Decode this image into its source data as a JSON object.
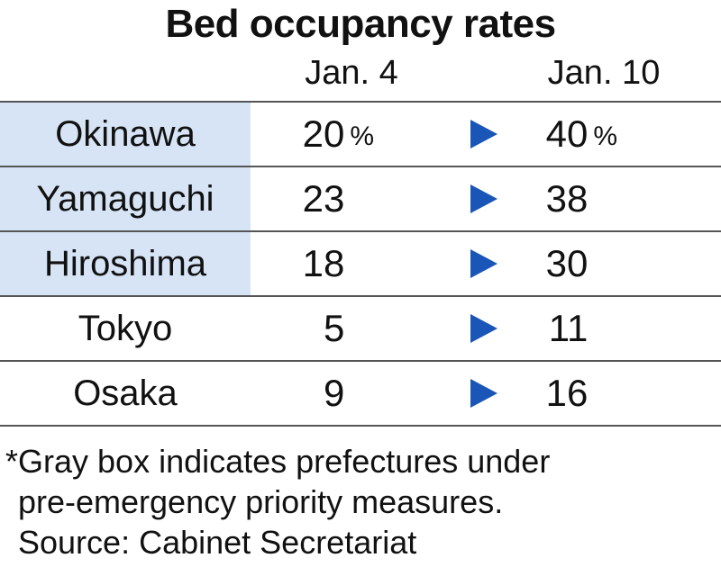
{
  "chart_data": {
    "type": "table",
    "title": "Bed occupancy rates",
    "columns": [
      "Jan. 4",
      "Jan. 10"
    ],
    "unit": "%",
    "rows": [
      {
        "prefecture": "Okinawa",
        "jan4": 20,
        "jan10": 40,
        "highlighted": true
      },
      {
        "prefecture": "Yamaguchi",
        "jan4": 23,
        "jan10": 38,
        "highlighted": true
      },
      {
        "prefecture": "Hiroshima",
        "jan4": 18,
        "jan10": 30,
        "highlighted": true
      },
      {
        "prefecture": "Tokyo",
        "jan4": 5,
        "jan10": 11,
        "highlighted": false
      },
      {
        "prefecture": "Osaka",
        "jan4": 9,
        "jan10": 16,
        "highlighted": false
      }
    ],
    "highlight_color": "#d6e4f5",
    "arrow_color": "#1a56b8"
  },
  "footnote": {
    "line1": "*Gray box indicates prefectures under",
    "line2": "pre-emergency priority measures.",
    "line3": "Source: Cabinet Secretariat"
  }
}
